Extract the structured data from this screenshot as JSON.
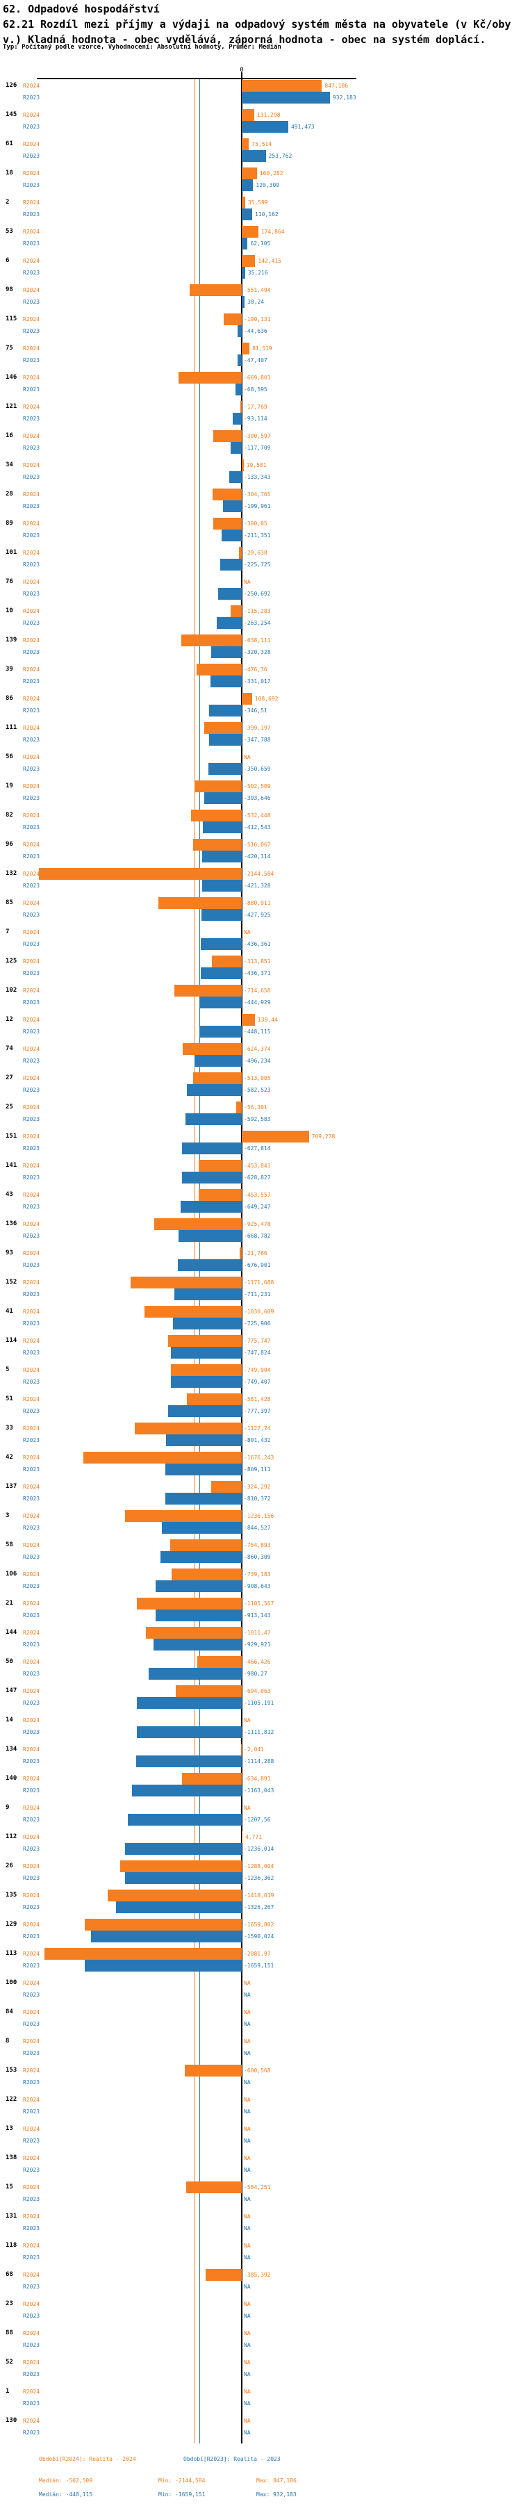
{
  "header": {
    "line1": "62. Odpadové hospodářství",
    "line2": "62.21 Rozdíl mezi příjmy a výdaji na odpadový systém města na obyvatele (v Kč/oby",
    "line3": "v.) Kladná hodnota - obec vydělává, záporná hodnota - obec na systém doplácí.",
    "line4": "Typ: Počítaný podle vzorce, Vyhodnocení: Absolutní hodnoty, Průměr: Medián"
  },
  "chart_data": {
    "type": "bar",
    "orientation": "horizontal",
    "title": "62.21 Rozdíl mezi příjmy a výdaji na odpadový systém města na obyvatele (v Kč/obyv.)",
    "value_format": "czech-decimal-comma",
    "na_text": "NA",
    "axis": {
      "zero_label": "0",
      "xlim": [
        -2200,
        950
      ],
      "grid": false
    },
    "series": [
      {
        "key": "r2024",
        "label": "R2024",
        "color": "#F57E20",
        "period": "Období[R2024]: Realita - 2024",
        "median": "-502,509",
        "min": "-2144,584",
        "max": "847,186"
      },
      {
        "key": "r2023",
        "label": "R2023",
        "color": "#2878B5",
        "period": "Období[R2023]: Realita - 2023",
        "median": "-448,115",
        "min": "-1659,151",
        "max": "932,183"
      }
    ],
    "rows": [
      {
        "id": "126",
        "r2024": "847,186",
        "r2023": "932,183"
      },
      {
        "id": "145",
        "r2024": "131,298",
        "r2023": "491,473"
      },
      {
        "id": "61",
        "r2024": "75,514",
        "r2023": "253,762"
      },
      {
        "id": "18",
        "r2024": "160,282",
        "r2023": "120,309"
      },
      {
        "id": "2",
        "r2024": "35,599",
        "r2023": "110,162"
      },
      {
        "id": "53",
        "r2024": "174,864",
        "r2023": "62,105"
      },
      {
        "id": "6",
        "r2024": "142,415",
        "r2023": "35,216"
      },
      {
        "id": "98",
        "r2024": "-551,494",
        "r2023": "30,24"
      },
      {
        "id": "115",
        "r2024": "-190,131",
        "r2023": "-44,636"
      },
      {
        "id": "75",
        "r2024": "81,519",
        "r2023": "-47,407"
      },
      {
        "id": "146",
        "r2024": "-669,801",
        "r2023": "-68,595"
      },
      {
        "id": "121",
        "r2024": "-17,769",
        "r2023": "-93,114"
      },
      {
        "id": "16",
        "r2024": "-300,597",
        "r2023": "-117,709"
      },
      {
        "id": "34",
        "r2024": "19,581",
        "r2023": "-133,343"
      },
      {
        "id": "28",
        "r2024": "-304,765",
        "r2023": "-199,961"
      },
      {
        "id": "89",
        "r2024": "-300,05",
        "r2023": "-211,351"
      },
      {
        "id": "101",
        "r2024": "-29,638",
        "r2023": "-225,725"
      },
      {
        "id": "76",
        "r2024": "NA",
        "r2023": "-250,692"
      },
      {
        "id": "10",
        "r2024": "-115,283",
        "r2023": "-263,254"
      },
      {
        "id": "139",
        "r2024": "-638,111",
        "r2023": "-320,328"
      },
      {
        "id": "39",
        "r2024": "-476,76",
        "r2023": "-331,017"
      },
      {
        "id": "86",
        "r2024": "108,692",
        "r2023": "-346,51"
      },
      {
        "id": "111",
        "r2024": "-399,197",
        "r2023": "-347,788"
      },
      {
        "id": "56",
        "r2024": "NA",
        "r2023": "-350,659"
      },
      {
        "id": "19",
        "r2024": "-502,509",
        "r2023": "-393,646"
      },
      {
        "id": "82",
        "r2024": "-532,448",
        "r2023": "-412,543"
      },
      {
        "id": "96",
        "r2024": "-516,067",
        "r2023": "-420,114"
      },
      {
        "id": "132",
        "r2024": "-2144,584",
        "r2023": "-421,328"
      },
      {
        "id": "85",
        "r2024": "-880,911",
        "r2023": "-427,925"
      },
      {
        "id": "7",
        "r2024": "NA",
        "r2023": "-436,361"
      },
      {
        "id": "125",
        "r2024": "-313,851",
        "r2023": "-436,371"
      },
      {
        "id": "102",
        "r2024": "-714,658",
        "r2023": "-444,929"
      },
      {
        "id": "12",
        "r2024": "139,44",
        "r2023": "-448,115"
      },
      {
        "id": "74",
        "r2024": "-624,374",
        "r2023": "-496,234"
      },
      {
        "id": "27",
        "r2024": "-513,005",
        "r2023": "-582,523"
      },
      {
        "id": "25",
        "r2024": "-56,301",
        "r2023": "-592,583"
      },
      {
        "id": "151",
        "r2024": "709,278",
        "r2023": "-627,814"
      },
      {
        "id": "141",
        "r2024": "-453,843",
        "r2023": "-628,827"
      },
      {
        "id": "43",
        "r2024": "-453,557",
        "r2023": "-649,247"
      },
      {
        "id": "136",
        "r2024": "-925,478",
        "r2023": "-668,782"
      },
      {
        "id": "93",
        "r2024": "-21,766",
        "r2023": "-676,901"
      },
      {
        "id": "152",
        "r2024": "-1171,688",
        "r2023": "-711,231"
      },
      {
        "id": "41",
        "r2024": "-1030,609",
        "r2023": "-725,906"
      },
      {
        "id": "114",
        "r2024": "-775,747",
        "r2023": "-747,824"
      },
      {
        "id": "5",
        "r2024": "-749,904",
        "r2023": "-749,407"
      },
      {
        "id": "51",
        "r2024": "-581,428",
        "r2023": "-777,397"
      },
      {
        "id": "33",
        "r2024": "-1127,74",
        "r2023": "-801,432"
      },
      {
        "id": "42",
        "r2024": "-1676,243",
        "r2023": "-809,111"
      },
      {
        "id": "137",
        "r2024": "-324,292",
        "r2023": "-810,372"
      },
      {
        "id": "3",
        "r2024": "-1236,156",
        "r2023": "-844,527"
      },
      {
        "id": "58",
        "r2024": "-754,893",
        "r2023": "-860,309"
      },
      {
        "id": "106",
        "r2024": "-739,183",
        "r2023": "-908,643"
      },
      {
        "id": "21",
        "r2024": "-1105,567",
        "r2023": "-913,143"
      },
      {
        "id": "144",
        "r2024": "-1011,47",
        "r2023": "-929,921"
      },
      {
        "id": "50",
        "r2024": "-466,426",
        "r2023": "-980,27"
      },
      {
        "id": "147",
        "r2024": "-694,063",
        "r2023": "-1105,191"
      },
      {
        "id": "14",
        "r2024": "NA",
        "r2023": "-1111,812"
      },
      {
        "id": "134",
        "r2024": "-2,041",
        "r2023": "-1114,288"
      },
      {
        "id": "140",
        "r2024": "-634,891",
        "r2023": "-1163,043"
      },
      {
        "id": "9",
        "r2024": "NA",
        "r2023": "-1207,56"
      },
      {
        "id": "112",
        "r2024": "4,771",
        "r2023": "-1236,014"
      },
      {
        "id": "26",
        "r2024": "-1288,004",
        "r2023": "-1236,362"
      },
      {
        "id": "135",
        "r2024": "-1418,019",
        "r2023": "-1326,267"
      },
      {
        "id": "129",
        "r2024": "-1659,802",
        "r2023": "-1590,024"
      },
      {
        "id": "113",
        "r2024": "-2081,97",
        "r2023": "-1659,151"
      },
      {
        "id": "100",
        "r2024": "NA",
        "r2023": "NA"
      },
      {
        "id": "84",
        "r2024": "NA",
        "r2023": "NA"
      },
      {
        "id": "8",
        "r2024": "NA",
        "r2023": "NA"
      },
      {
        "id": "153",
        "r2024": "-600,568",
        "r2023": "NA"
      },
      {
        "id": "122",
        "r2024": "NA",
        "r2023": "NA"
      },
      {
        "id": "13",
        "r2024": "NA",
        "r2023": "NA"
      },
      {
        "id": "138",
        "r2024": "NA",
        "r2023": "NA"
      },
      {
        "id": "15",
        "r2024": "-584,251",
        "r2023": "NA"
      },
      {
        "id": "131",
        "r2024": "NA",
        "r2023": "NA"
      },
      {
        "id": "118",
        "r2024": "NA",
        "r2023": "NA"
      },
      {
        "id": "68",
        "r2024": "-385,392",
        "r2023": "NA"
      },
      {
        "id": "23",
        "r2024": "NA",
        "r2023": "NA"
      },
      {
        "id": "88",
        "r2024": "NA",
        "r2023": "NA"
      },
      {
        "id": "52",
        "r2024": "NA",
        "r2023": "NA"
      },
      {
        "id": "1",
        "r2024": "NA",
        "r2023": "NA"
      },
      {
        "id": "130",
        "r2024": "NA",
        "r2023": "NA"
      }
    ]
  },
  "legend": {
    "r2024_period": "Období[R2024]: Realita - 2024",
    "r2023_period": "Období[R2023]: Realita - 2023",
    "r2024_median": "Medián: -502,509",
    "r2024_min": "Min: -2144,584",
    "r2024_max": "Max: 847,186",
    "r2023_median": "Medián: -448,115",
    "r2023_min": "Min: -1659,151",
    "r2023_max": "Max: 932,183"
  }
}
